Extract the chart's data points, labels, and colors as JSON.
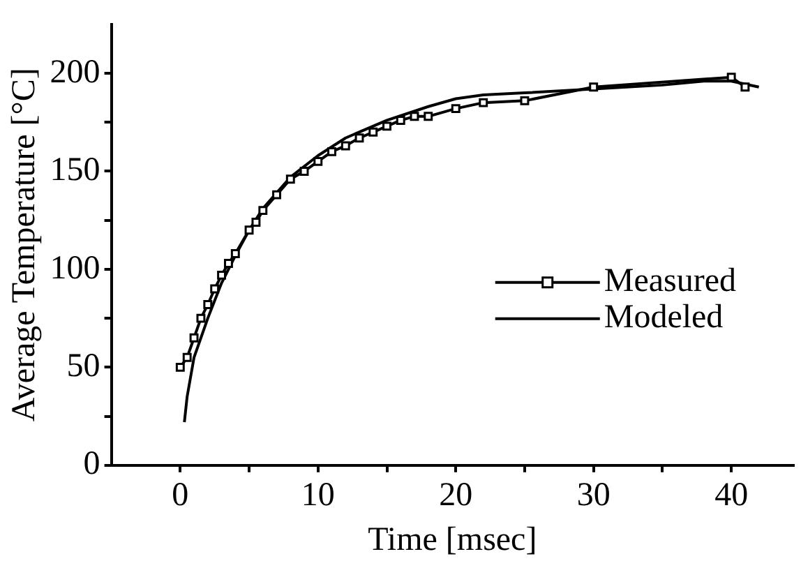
{
  "chart_data": {
    "type": "line",
    "xlabel": "Time [msec]",
    "ylabel": "Average Temperature [°C]",
    "xlim": [
      -5,
      44.5
    ],
    "ylim": [
      0,
      225
    ],
    "xticks": [
      0,
      {
        "value": 5,
        "label": null
      },
      10,
      {
        "value": 15,
        "label": null
      },
      20,
      {
        "value": 25,
        "label": null
      },
      30,
      {
        "value": 35,
        "label": null
      },
      40
    ],
    "yticks": [
      0,
      {
        "value": 25,
        "label": null
      },
      50,
      {
        "value": 75,
        "label": null
      },
      100,
      {
        "value": 125,
        "label": null
      },
      150,
      {
        "value": 175,
        "label": null
      },
      200
    ],
    "grid": false,
    "legend": "right",
    "series": [
      {
        "name": "Measured",
        "color": "#000000",
        "marker": "square",
        "line_style": "solid",
        "x": [
          0,
          0.5,
          1,
          1.5,
          2,
          2.5,
          3,
          3.5,
          4,
          5,
          5.5,
          6,
          7,
          8,
          9,
          10,
          11,
          12,
          13,
          14,
          15,
          16,
          17,
          18,
          20,
          22,
          25,
          30,
          40,
          41
        ],
        "values": [
          50,
          55,
          65,
          75,
          82,
          90,
          97,
          103,
          108,
          120,
          124,
          130,
          138,
          146,
          150,
          155,
          160,
          163,
          167,
          170,
          173,
          176,
          178,
          178,
          182,
          185,
          186,
          193,
          198,
          193
        ]
      },
      {
        "name": "Modeled",
        "color": "#000000",
        "marker": "none",
        "line_style": "solid",
        "x": [
          0.3,
          0.5,
          1,
          2,
          3,
          4,
          5,
          6,
          8,
          10,
          12,
          15,
          18,
          20,
          22,
          25,
          30,
          35,
          38,
          40,
          42
        ],
        "values": [
          22,
          35,
          55,
          75,
          93,
          107,
          120,
          131,
          147,
          158,
          167,
          176,
          183,
          187,
          189,
          190,
          192,
          194,
          196,
          196,
          193
        ]
      }
    ]
  }
}
